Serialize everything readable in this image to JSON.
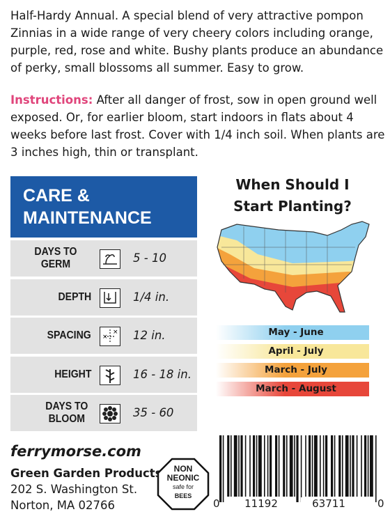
{
  "description": "Half-Hardy Annual. A special blend of very attractive pompon Zinnias in a wide range of very cheery colors including orange, purple, red, rose and white. Bushy plants produce an abundance of perky, small blossoms all summer. Easy to grow.",
  "instructions": {
    "label": "Instructions:",
    "text": "After all danger of frost, sow in open ground well exposed. Or, for earlier bloom, start indoors in flats about 4 weeks before last frost. Cover with 1/4 inch soil. When plants are 3 inches high, thin or transplant."
  },
  "care": {
    "title_lines": [
      "CARE &",
      "MAINTENANCE"
    ],
    "rows": [
      {
        "label": "DAYS TO GERM",
        "value": "5 - 10"
      },
      {
        "label": "DEPTH",
        "value": "1/4 in."
      },
      {
        "label": "SPACING",
        "value": "12 in."
      },
      {
        "label": "HEIGHT",
        "value": "16 - 18 in."
      },
      {
        "label": "DAYS TO BLOOM",
        "value": "35 - 60"
      }
    ]
  },
  "planting": {
    "title_lines": [
      "When Should I",
      "Start Planting?"
    ],
    "legend": [
      "May - June",
      "April - July",
      "March - July",
      "March - August"
    ]
  },
  "footer": {
    "website": "ferrymorse.com",
    "company": "Green Garden Products",
    "address_lines": [
      "202 S. Washington St.",
      "Norton, MA 02766"
    ]
  },
  "badge": [
    "NON",
    "NEONIC",
    "safe for",
    "BEES"
  ],
  "barcode": [
    "0",
    "11192",
    "63711",
    "0"
  ]
}
